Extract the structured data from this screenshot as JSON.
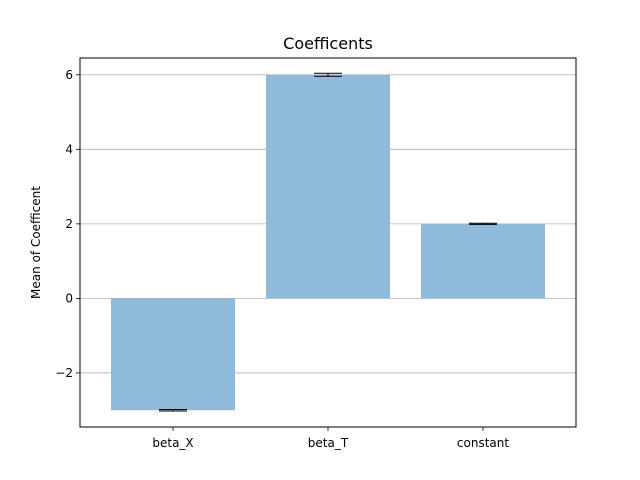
{
  "chart_data": {
    "type": "bar",
    "title": "Coefficents",
    "xlabel": "",
    "ylabel": "Mean of Coefficent",
    "categories": [
      "beta_X",
      "beta_T",
      "constant"
    ],
    "values": [
      -3.0,
      6.0,
      2.0
    ],
    "error": [
      0.02,
      0.04,
      0.015
    ],
    "ylim": [
      -3.45,
      6.45
    ],
    "yticks": [
      -2,
      0,
      2,
      4,
      6
    ],
    "ytick_labels": [
      "−2",
      "0",
      "2",
      "4",
      "6"
    ],
    "grid": "y-major",
    "bar_color": "#8fbad9",
    "errorbar_color": "#000000",
    "grid_color": "#b0b0b0"
  }
}
